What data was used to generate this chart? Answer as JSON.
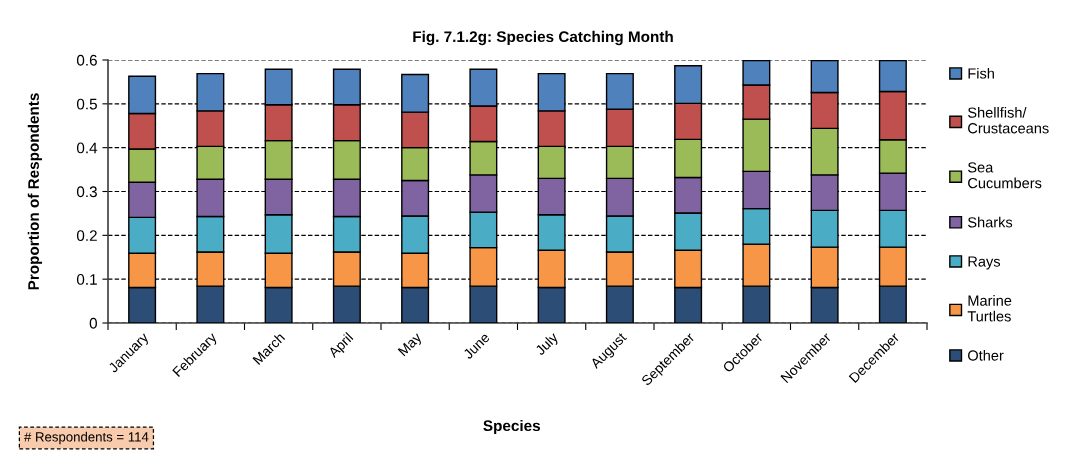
{
  "chart_data": {
    "type": "bar",
    "stacked": true,
    "title": "Fig. 7.1.2g: Species Catching Month",
    "xlabel": "Species",
    "ylabel": "Proportion of Respondents",
    "categories": [
      "January",
      "February",
      "March",
      "April",
      "May",
      "June",
      "July",
      "August",
      "September",
      "October",
      "November",
      "December"
    ],
    "series": [
      {
        "name": "Other",
        "color": "#2c4d75",
        "values": [
          0.081,
          0.084,
          0.081,
          0.084,
          0.081,
          0.084,
          0.081,
          0.084,
          0.081,
          0.084,
          0.081,
          0.084
        ]
      },
      {
        "name": "Marine Turtles",
        "color": "#f79646",
        "values": [
          0.078,
          0.078,
          0.078,
          0.078,
          0.078,
          0.088,
          0.085,
          0.078,
          0.085,
          0.096,
          0.092,
          0.089
        ]
      },
      {
        "name": "Rays",
        "color": "#4bacc6",
        "values": [
          0.082,
          0.081,
          0.088,
          0.081,
          0.085,
          0.081,
          0.081,
          0.082,
          0.085,
          0.081,
          0.084,
          0.084
        ]
      },
      {
        "name": "Sharks",
        "color": "#8064a2",
        "values": [
          0.08,
          0.085,
          0.081,
          0.085,
          0.081,
          0.085,
          0.083,
          0.086,
          0.081,
          0.085,
          0.081,
          0.085
        ]
      },
      {
        "name": "Sea Cucumbers",
        "color": "#9bbb59",
        "values": [
          0.076,
          0.075,
          0.088,
          0.088,
          0.075,
          0.076,
          0.073,
          0.073,
          0.087,
          0.119,
          0.106,
          0.076
        ]
      },
      {
        "name": "Shellfish/Crustaceans",
        "color": "#c0504d",
        "values": [
          0.081,
          0.081,
          0.082,
          0.082,
          0.081,
          0.081,
          0.081,
          0.085,
          0.082,
          0.078,
          0.082,
          0.11
        ]
      },
      {
        "name": "Fish",
        "color": "#4f81bd",
        "values": [
          0.085,
          0.085,
          0.081,
          0.081,
          0.086,
          0.084,
          0.085,
          0.081,
          0.086,
          0.056,
          0.073,
          0.071
        ]
      }
    ],
    "ylim": [
      0,
      0.6
    ],
    "yticks": [
      0,
      0.1,
      0.2,
      0.3,
      0.4,
      0.5,
      0.6
    ],
    "grid": "y",
    "legend": "right",
    "annotations": [
      "# Respondents = 114"
    ]
  }
}
